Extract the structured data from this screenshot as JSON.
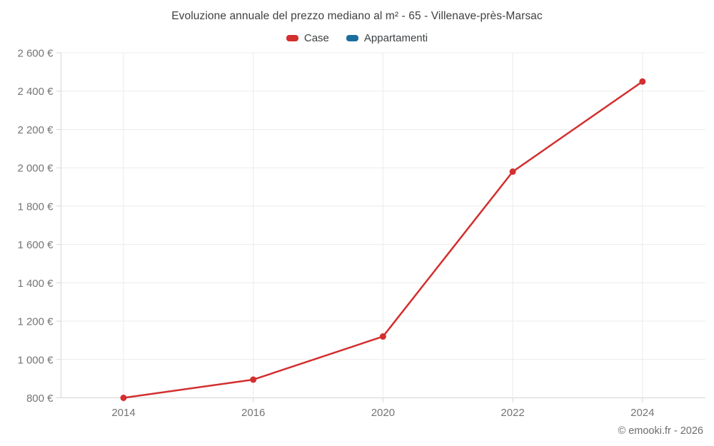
{
  "title": "Evoluzione annuale del prezzo mediano al m² - 65 - Villenave-près-Marsac",
  "legend": [
    {
      "label": "Case",
      "color": "#d32f2f"
    },
    {
      "label": "Appartamenti",
      "color": "#1b6d9e"
    }
  ],
  "attribution": "© emooki.fr - 2026",
  "colors": {
    "case": "#d32f2f",
    "appartamenti": "#1b6d9e",
    "grid": "#ebebeb",
    "axis": "#d6d6d6",
    "tick_label": "#757575",
    "title": "#404040"
  },
  "chart_data": {
    "type": "line",
    "title": "Evoluzione annuale del prezzo mediano al m² - 65 - Villenave-près-Marsac",
    "categories": [
      "2014",
      "2016",
      "2020",
      "2022",
      "2024"
    ],
    "series": [
      {
        "name": "Case",
        "color": "#d32f2f",
        "values": [
          800,
          895,
          1120,
          1980,
          2450
        ]
      },
      {
        "name": "Appartamenti",
        "color": "#1b6d9e",
        "values": []
      }
    ],
    "xlabel": "",
    "ylabel": "",
    "ylim": [
      800,
      2600
    ],
    "y_ticks": [
      800,
      1000,
      1200,
      1400,
      1600,
      1800,
      2000,
      2200,
      2400,
      2600
    ],
    "y_tick_labels": [
      "800 €",
      "1 000 €",
      "1 200 €",
      "1 400 €",
      "1 600 €",
      "1 800 €",
      "2 000 €",
      "2 200 €",
      "2 400 €",
      "2 600 €"
    ],
    "currency_suffix": " €",
    "grid": true,
    "legend_position": "top"
  }
}
